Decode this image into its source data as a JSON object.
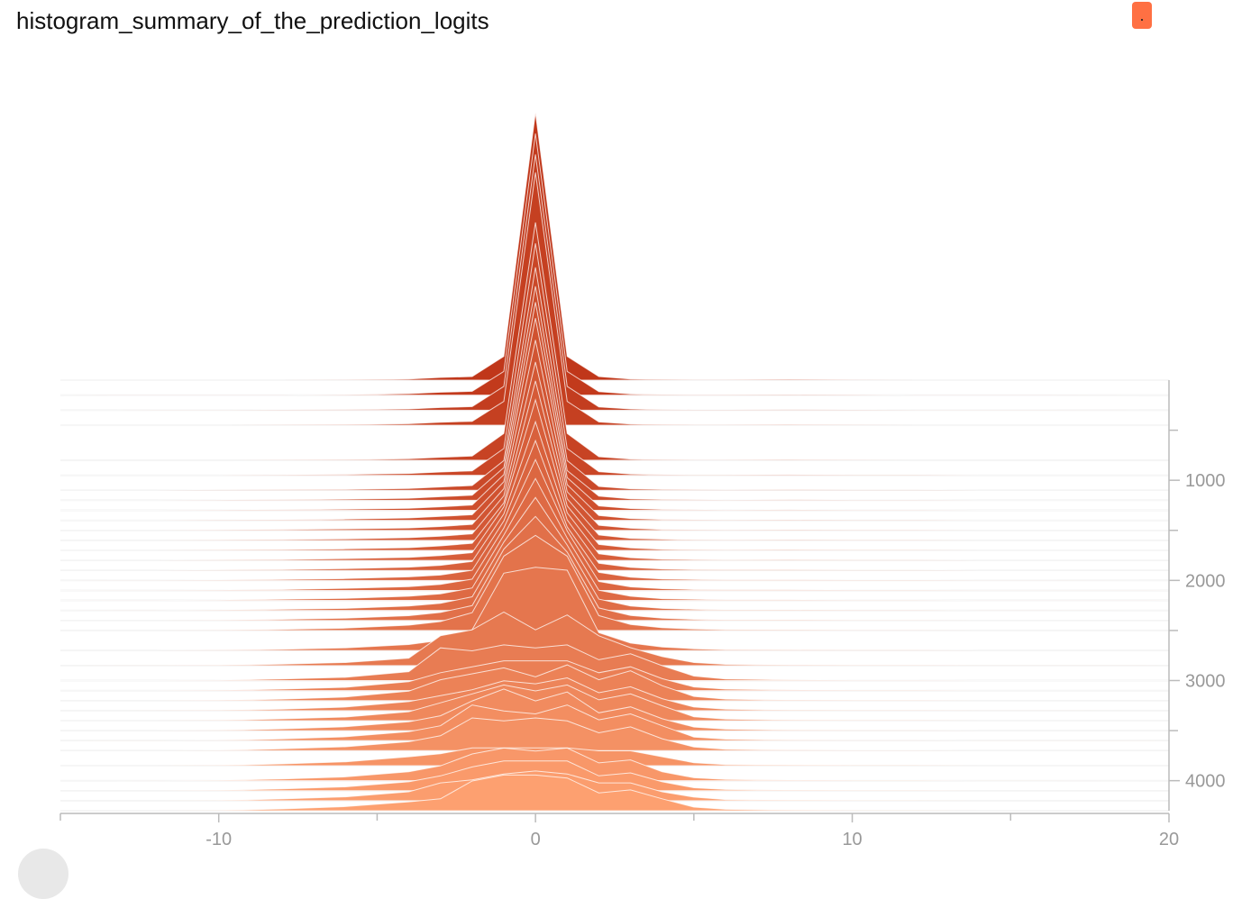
{
  "title": "histogram_summary_of_the_prediction_logits",
  "menu_button_label": ".",
  "colors": {
    "oldest_step": "#c0371a",
    "newest_step": "#fda070",
    "outline": "#ffffff",
    "baseline": "#e6e6e6",
    "axis": "#bbbbbb",
    "tick_text": "#999999",
    "menu_button": "#ff7043"
  },
  "chart_data": {
    "type": "histogram-offset",
    "title": "histogram_summary_of_the_prediction_logits",
    "xlabel": "",
    "ylabel": "",
    "xlim": [
      -15,
      20
    ],
    "ylim": [
      0,
      4300
    ],
    "x_ticks": [
      -10,
      0,
      10,
      20
    ],
    "x_tick_labels": [
      "-10",
      "0",
      "10",
      "20"
    ],
    "y_ticks": [
      1000,
      2000,
      3000,
      4000
    ],
    "y_tick_labels": [
      "1000",
      "2000",
      "3000",
      "4000"
    ],
    "x_minor_ticks": [
      -15,
      -5,
      5,
      15
    ],
    "y_minor_ticks": [
      500,
      1500,
      2500,
      3500
    ],
    "steps": [
      0,
      150,
      300,
      450,
      800,
      950,
      1100,
      1200,
      1300,
      1400,
      1500,
      1600,
      1700,
      1800,
      1900,
      2000,
      2100,
      2200,
      2300,
      2400,
      2500,
      2700,
      2850,
      3000,
      3100,
      3200,
      3300,
      3400,
      3500,
      3600,
      3700,
      3850,
      4000,
      4100,
      4200,
      4300
    ],
    "x": [
      -12,
      -10,
      -8,
      -6,
      -4,
      -3,
      -2,
      -1,
      0,
      1,
      2,
      3,
      4,
      5,
      6,
      8,
      10,
      12,
      14,
      16
    ],
    "histograms": [
      [
        0,
        0,
        0,
        0.001,
        0.004,
        0.009,
        0.012,
        0.08,
        0.9,
        0.08,
        0.012,
        0.004,
        0.002,
        0.001,
        0.001,
        0.003,
        0.001,
        0,
        0,
        0
      ],
      [
        0,
        0,
        0,
        0.001,
        0.005,
        0.01,
        0.013,
        0.08,
        0.88,
        0.08,
        0.012,
        0.004,
        0.002,
        0.001,
        0.001,
        0.002,
        0.001,
        0,
        0,
        0
      ],
      [
        0,
        0,
        0.001,
        0.002,
        0.004,
        0.009,
        0.012,
        0.08,
        0.86,
        0.08,
        0.011,
        0.004,
        0.002,
        0.001,
        0.001,
        0.002,
        0.001,
        0,
        0,
        0
      ],
      [
        0,
        0,
        0.001,
        0.002,
        0.005,
        0.01,
        0.013,
        0.08,
        0.85,
        0.08,
        0.011,
        0.004,
        0.002,
        0.001,
        0.001,
        0.002,
        0.001,
        0,
        0,
        0
      ],
      [
        0,
        0,
        0.001,
        0.002,
        0.005,
        0.01,
        0.014,
        0.09,
        0.8,
        0.09,
        0.012,
        0.004,
        0.002,
        0.001,
        0.001,
        0.002,
        0.001,
        0,
        0,
        0
      ],
      [
        0,
        0,
        0.001,
        0.003,
        0.006,
        0.011,
        0.015,
        0.09,
        0.78,
        0.09,
        0.012,
        0.004,
        0.002,
        0.001,
        0.001,
        0.002,
        0.001,
        0.001,
        0,
        0
      ],
      [
        0,
        0.001,
        0.002,
        0.003,
        0.006,
        0.011,
        0.016,
        0.1,
        0.75,
        0.1,
        0.013,
        0.005,
        0.003,
        0.002,
        0.001,
        0.002,
        0.001,
        0.001,
        0,
        0
      ],
      [
        0,
        0.001,
        0.002,
        0.004,
        0.007,
        0.012,
        0.017,
        0.11,
        0.72,
        0.1,
        0.014,
        0.005,
        0.003,
        0.002,
        0.001,
        0.002,
        0.001,
        0.001,
        0,
        0
      ],
      [
        0,
        0.001,
        0.002,
        0.004,
        0.007,
        0.012,
        0.018,
        0.12,
        0.7,
        0.11,
        0.015,
        0.006,
        0.003,
        0.002,
        0.001,
        0.002,
        0.001,
        0.001,
        0,
        0
      ],
      [
        0,
        0.001,
        0.002,
        0.004,
        0.008,
        0.013,
        0.019,
        0.13,
        0.68,
        0.12,
        0.016,
        0.006,
        0.003,
        0.002,
        0.001,
        0.002,
        0.001,
        0.001,
        0,
        0
      ],
      [
        0,
        0.001,
        0.003,
        0.005,
        0.008,
        0.013,
        0.02,
        0.14,
        0.64,
        0.13,
        0.017,
        0.007,
        0.003,
        0.002,
        0.001,
        0.002,
        0.001,
        0.001,
        0,
        0
      ],
      [
        0,
        0.001,
        0.003,
        0.005,
        0.009,
        0.014,
        0.022,
        0.15,
        0.6,
        0.14,
        0.018,
        0.007,
        0.004,
        0.002,
        0.001,
        0.002,
        0.001,
        0.001,
        0,
        0
      ],
      [
        0,
        0.001,
        0.003,
        0.005,
        0.009,
        0.015,
        0.024,
        0.16,
        0.57,
        0.15,
        0.02,
        0.008,
        0.004,
        0.002,
        0.001,
        0.002,
        0.001,
        0.001,
        0,
        0
      ],
      [
        0,
        0.001,
        0.003,
        0.006,
        0.01,
        0.016,
        0.026,
        0.18,
        0.54,
        0.16,
        0.022,
        0.009,
        0.004,
        0.003,
        0.001,
        0.002,
        0.001,
        0.001,
        0,
        0
      ],
      [
        0,
        0.001,
        0.003,
        0.006,
        0.011,
        0.017,
        0.03,
        0.19,
        0.5,
        0.17,
        0.024,
        0.01,
        0.005,
        0.003,
        0.002,
        0.002,
        0.001,
        0.001,
        0,
        0
      ],
      [
        0,
        0.001,
        0.003,
        0.006,
        0.012,
        0.018,
        0.034,
        0.2,
        0.47,
        0.18,
        0.027,
        0.011,
        0.005,
        0.003,
        0.002,
        0.002,
        0.001,
        0.001,
        0,
        0
      ],
      [
        0,
        0.001,
        0.003,
        0.007,
        0.013,
        0.02,
        0.038,
        0.21,
        0.44,
        0.2,
        0.03,
        0.012,
        0.006,
        0.003,
        0.002,
        0.002,
        0.001,
        0.001,
        0,
        0
      ],
      [
        0,
        0.001,
        0.004,
        0.007,
        0.014,
        0.022,
        0.042,
        0.22,
        0.41,
        0.21,
        0.034,
        0.014,
        0.006,
        0.004,
        0.002,
        0.002,
        0.001,
        0.001,
        0,
        0
      ],
      [
        0,
        0.001,
        0.004,
        0.007,
        0.015,
        0.024,
        0.046,
        0.23,
        0.38,
        0.22,
        0.038,
        0.015,
        0.007,
        0.004,
        0.002,
        0.002,
        0.001,
        0.001,
        0,
        0
      ],
      [
        0,
        0.001,
        0.004,
        0.008,
        0.016,
        0.027,
        0.05,
        0.24,
        0.35,
        0.23,
        0.042,
        0.017,
        0.008,
        0.004,
        0.002,
        0.002,
        0.001,
        0.001,
        0,
        0
      ],
      [
        0,
        0.001,
        0.004,
        0.008,
        0.018,
        0.03,
        0.06,
        0.25,
        0.32,
        0.25,
        0.05,
        0.02,
        0.009,
        0.005,
        0.003,
        0.002,
        0.001,
        0.001,
        0,
        0
      ],
      [
        0,
        0.001,
        0.004,
        0.009,
        0.02,
        0.034,
        0.07,
        0.26,
        0.28,
        0.27,
        0.06,
        0.025,
        0.012,
        0.006,
        0.003,
        0.002,
        0.001,
        0.001,
        0,
        0
      ],
      [
        0,
        0.001,
        0.005,
        0.01,
        0.025,
        0.1,
        0.12,
        0.18,
        0.12,
        0.17,
        0.1,
        0.06,
        0.03,
        0.01,
        0.004,
        0.002,
        0.001,
        0.001,
        0,
        0
      ],
      [
        0,
        0.001,
        0.005,
        0.011,
        0.03,
        0.11,
        0.1,
        0.12,
        0.11,
        0.12,
        0.07,
        0.09,
        0.05,
        0.015,
        0.005,
        0.002,
        0.001,
        0.001,
        0,
        0
      ],
      [
        0,
        0.001,
        0.005,
        0.011,
        0.03,
        0.06,
        0.08,
        0.1,
        0.1,
        0.1,
        0.06,
        0.08,
        0.04,
        0.012,
        0.005,
        0.002,
        0.001,
        0.001,
        0,
        0
      ],
      [
        0,
        0.001,
        0.005,
        0.012,
        0.032,
        0.07,
        0.09,
        0.11,
        0.08,
        0.12,
        0.07,
        0.1,
        0.05,
        0.014,
        0.005,
        0.002,
        0.001,
        0.001,
        0,
        0
      ],
      [
        0,
        0.001,
        0.005,
        0.012,
        0.03,
        0.05,
        0.07,
        0.1,
        0.09,
        0.11,
        0.06,
        0.08,
        0.04,
        0.012,
        0.005,
        0.002,
        0.001,
        0.001,
        0,
        0
      ],
      [
        0,
        0.001,
        0.006,
        0.012,
        0.03,
        0.06,
        0.09,
        0.12,
        0.1,
        0.12,
        0.07,
        0.09,
        0.05,
        0.013,
        0.005,
        0.002,
        0.001,
        0.001,
        0,
        0
      ],
      [
        0,
        0.001,
        0.006,
        0.013,
        0.03,
        0.05,
        0.1,
        0.14,
        0.1,
        0.13,
        0.06,
        0.08,
        0.04,
        0.012,
        0.005,
        0.002,
        0.001,
        0.001,
        0,
        0
      ],
      [
        0,
        0.001,
        0.006,
        0.013,
        0.03,
        0.05,
        0.12,
        0.1,
        0.09,
        0.12,
        0.07,
        0.09,
        0.05,
        0.012,
        0.005,
        0.002,
        0.001,
        0.001,
        0,
        0
      ],
      [
        0,
        0.001,
        0.006,
        0.013,
        0.03,
        0.05,
        0.11,
        0.1,
        0.11,
        0.1,
        0.06,
        0.08,
        0.04,
        0.012,
        0.005,
        0.002,
        0.001,
        0.001,
        0,
        0
      ],
      [
        0,
        0.001,
        0.006,
        0.013,
        0.03,
        0.04,
        0.06,
        0.06,
        0.06,
        0.06,
        0.05,
        0.05,
        0.03,
        0.01,
        0.004,
        0.002,
        0.001,
        0.001,
        0,
        0
      ],
      [
        0,
        0.001,
        0.006,
        0.013,
        0.03,
        0.05,
        0.09,
        0.11,
        0.1,
        0.11,
        0.06,
        0.07,
        0.03,
        0.01,
        0.004,
        0.002,
        0.001,
        0.001,
        0,
        0
      ],
      [
        0,
        0.001,
        0.006,
        0.013,
        0.03,
        0.05,
        0.08,
        0.1,
        0.1,
        0.1,
        0.05,
        0.06,
        0.03,
        0.01,
        0.004,
        0.002,
        0.001,
        0.001,
        0,
        0
      ],
      [
        0,
        0.001,
        0.006,
        0.013,
        0.03,
        0.06,
        0.07,
        0.09,
        0.1,
        0.09,
        0.06,
        0.06,
        0.03,
        0.012,
        0.004,
        0.002,
        0.001,
        0.001,
        0,
        0
      ],
      [
        0,
        0.001,
        0.006,
        0.014,
        0.03,
        0.04,
        0.1,
        0.12,
        0.12,
        0.11,
        0.06,
        0.07,
        0.04,
        0.012,
        0.005,
        0.002,
        0.001,
        0.001,
        0,
        0
      ]
    ]
  }
}
